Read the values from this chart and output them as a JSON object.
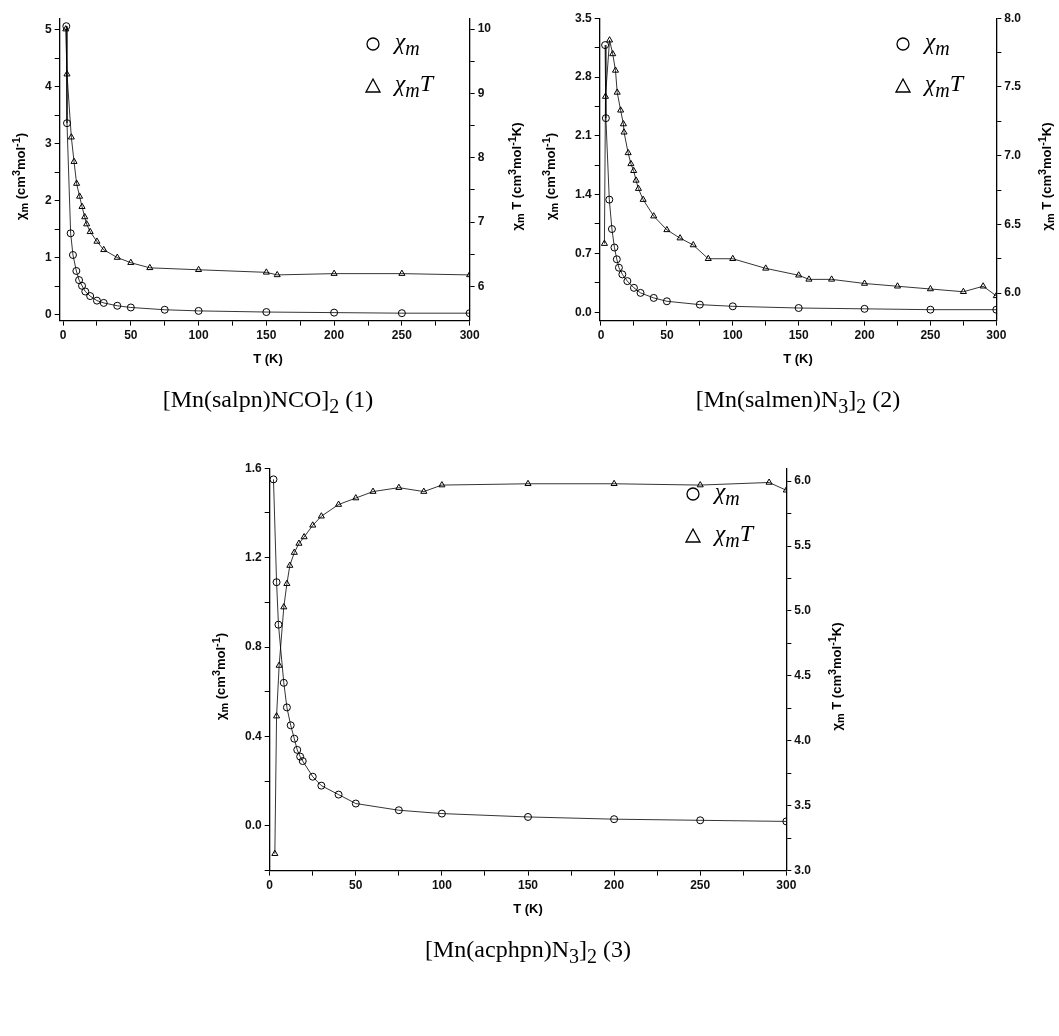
{
  "chart_data": [
    {
      "type": "line",
      "title": "[Mn(salpn)NCO]$_{2}$ (1)",
      "xlabel": "T (K)",
      "ylabel": "χ$_{m}$ (cm$^{3}$mol$^{-1}$)",
      "y2label": "χ$_{m}$ T (cm$^{3}$mol$^{-1}$K)",
      "legend": "top right",
      "grid": false,
      "xlim": [
        -2.5,
        300
      ],
      "xticks": [
        0,
        {
          "value": 25,
          "label": null
        },
        50,
        {
          "value": 75,
          "label": null
        },
        100,
        {
          "value": 125,
          "label": null
        },
        150,
        {
          "value": 175,
          "label": null
        },
        200,
        {
          "value": 225,
          "label": null
        },
        250,
        {
          "value": 275,
          "label": null
        },
        300
      ],
      "ylim": [
        -0.1,
        5.2
      ],
      "yticks": [
        0,
        {
          "value": 0.5,
          "label": null
        },
        1,
        {
          "value": 1.5,
          "label": null
        },
        2,
        {
          "value": 2.5,
          "label": null
        },
        3,
        {
          "value": 3.5,
          "label": null
        },
        4,
        {
          "value": 4.5,
          "label": null
        },
        5
      ],
      "y2lim": [
        5.47,
        10.17
      ],
      "y2ticks": [
        6,
        {
          "value": 6.5,
          "label": null
        },
        7,
        {
          "value": 7.5,
          "label": null
        },
        8,
        {
          "value": 8.5,
          "label": null
        },
        9,
        {
          "value": 9.5,
          "label": null
        },
        10
      ],
      "series": [
        {
          "name": "χ$_{m}$",
          "color": "#000000",
          "marker": "circle",
          "axis": "y",
          "x": [
            2.4,
            2.9,
            5.6,
            7.3,
            9.8,
            11.8,
            14,
            16.4,
            20,
            25,
            30,
            40,
            50,
            75,
            100,
            150,
            200,
            250,
            300
          ],
          "values": [
            5.06,
            3.36,
            1.43,
            1.05,
            0.77,
            0.61,
            0.51,
            0.41,
            0.33,
            0.25,
            0.21,
            0.16,
            0.13,
            0.09,
            0.07,
            0.05,
            0.04,
            0.03,
            0.03
          ]
        },
        {
          "name": "χ$_{m}$T",
          "color": "#000000",
          "marker": "triangle",
          "axis": "y2",
          "x": [
            2,
            2.9,
            6.1,
            8.1,
            10,
            12.2,
            14,
            16,
            17.4,
            20,
            25,
            30,
            40,
            50,
            64,
            100,
            150,
            158,
            200,
            250,
            300
          ],
          "values": [
            10.0,
            9.3,
            8.32,
            7.94,
            7.6,
            7.4,
            7.24,
            7.08,
            6.97,
            6.85,
            6.7,
            6.57,
            6.45,
            6.37,
            6.29,
            6.26,
            6.22,
            6.18,
            6.2,
            6.2,
            6.18
          ]
        }
      ]
    },
    {
      "type": "line",
      "title": "[Mn(salmen)N$_{3}$]$_{2}$ (2)",
      "xlabel": "T (K)",
      "ylabel": "χ$_{m}$ (cm$^{3}$mol$^{-1}$)",
      "y2label": "χ$_{m}$ T (cm$^{3}$mol$^{-1}$K)",
      "legend": "top right",
      "grid": false,
      "xlim": [
        -1,
        300
      ],
      "xticks": [
        0,
        {
          "value": 25,
          "label": null
        },
        50,
        {
          "value": 75,
          "label": null
        },
        100,
        {
          "value": 125,
          "label": null
        },
        150,
        {
          "value": 175,
          "label": null
        },
        200,
        {
          "value": 225,
          "label": null
        },
        250,
        {
          "value": 275,
          "label": null
        },
        300
      ],
      "ylim": [
        -0.1,
        3.5
      ],
      "yticks": [
        {
          "value": 0,
          "label": "0.0"
        },
        {
          "value": 0.35,
          "label": null
        },
        0.7,
        {
          "value": 1.05,
          "label": null
        },
        1.4,
        {
          "value": 1.75,
          "label": null
        },
        2.1,
        {
          "value": 2.45,
          "label": null
        },
        2.8,
        {
          "value": 3.15,
          "label": null
        },
        3.5
      ],
      "y2lim": [
        5.8,
        8.0
      ],
      "y2ticks": [
        {
          "value": 6,
          "label": "6.0"
        },
        {
          "value": 6.25,
          "label": null
        },
        6.5,
        {
          "value": 6.75,
          "label": null
        },
        {
          "value": 7,
          "label": "7.0"
        },
        {
          "value": 7.25,
          "label": null
        },
        7.5,
        {
          "value": 7.75,
          "label": null
        },
        {
          "value": 8,
          "label": "8.0"
        }
      ],
      "series": [
        {
          "name": "χ$_{m}$",
          "color": "#000000",
          "marker": "circle",
          "axis": "y",
          "x": [
            3.1,
            3.7,
            6.3,
            8.3,
            10.2,
            12,
            13.6,
            16.2,
            20,
            25,
            30,
            40,
            50,
            75,
            100,
            150,
            200,
            250,
            300
          ],
          "values": [
            3.18,
            2.31,
            1.34,
            0.99,
            0.77,
            0.63,
            0.53,
            0.45,
            0.37,
            0.29,
            0.23,
            0.17,
            0.13,
            0.09,
            0.07,
            0.05,
            0.04,
            0.03,
            0.03
          ]
        },
        {
          "name": "χ$_{m}$T",
          "color": "#000000",
          "marker": "triangle",
          "axis": "y2",
          "x": [
            2.6,
            3.4,
            6.5,
            8.9,
            11,
            12.3,
            14.9,
            17,
            17.5,
            20.6,
            22.7,
            24.8,
            26.6,
            28.4,
            32,
            40,
            50,
            60,
            70,
            81.4,
            100,
            125,
            150,
            157.8,
            175,
            200,
            225,
            250,
            275,
            290,
            300
          ],
          "values": [
            6.36,
            7.43,
            7.84,
            7.74,
            7.62,
            7.46,
            7.33,
            7.23,
            7.17,
            7.02,
            6.94,
            6.89,
            6.82,
            6.76,
            6.68,
            6.56,
            6.46,
            6.4,
            6.35,
            6.25,
            6.25,
            6.18,
            6.13,
            6.1,
            6.1,
            6.07,
            6.05,
            6.03,
            6.01,
            6.05,
            5.98
          ]
        }
      ]
    },
    {
      "type": "line",
      "title": "[Mn(acphpn)N$_{3}$]$_{2}$ (3)",
      "xlabel": "T (K)",
      "ylabel": "χ$_{m}$ (cm$^{3}$mol$^{-1}$)",
      "y2label": "χ$_{m}$ T (cm$^{3}$mol$^{-1}$K)",
      "legend": "top right",
      "grid": false,
      "xlim": [
        0,
        300
      ],
      "xticks": [
        0,
        {
          "value": 25,
          "label": null
        },
        50,
        {
          "value": 75,
          "label": null
        },
        100,
        {
          "value": 125,
          "label": null
        },
        150,
        {
          "value": 175,
          "label": null
        },
        200,
        {
          "value": 225,
          "label": null
        },
        250,
        {
          "value": 275,
          "label": null
        },
        300
      ],
      "ylim": [
        -0.2,
        1.6
      ],
      "yticks": [
        {
          "value": -0.2,
          "label": null
        },
        {
          "value": 0,
          "label": "0.0"
        },
        {
          "value": 0.2,
          "label": null
        },
        0.4,
        {
          "value": 0.6,
          "label": null
        },
        0.8,
        {
          "value": 1.0,
          "label": null
        },
        1.2,
        {
          "value": 1.4,
          "label": null
        },
        1.6
      ],
      "y2lim": [
        3.0,
        6.1
      ],
      "y2ticks": [
        {
          "value": 3,
          "label": "3.0"
        },
        {
          "value": 3.25,
          "label": null
        },
        3.5,
        {
          "value": 3.75,
          "label": null
        },
        {
          "value": 4,
          "label": "4.0"
        },
        {
          "value": 4.25,
          "label": null
        },
        4.5,
        {
          "value": 4.75,
          "label": null
        },
        {
          "value": 5,
          "label": "5.0"
        },
        {
          "value": 5.25,
          "label": null
        },
        5.5,
        {
          "value": 5.75,
          "label": null
        },
        {
          "value": 6,
          "label": "6.0"
        }
      ],
      "series": [
        {
          "name": "χ$_{m}$",
          "color": "#000000",
          "marker": "circle",
          "axis": "y",
          "x": [
            2.2,
            4,
            5.1,
            8.2,
            10,
            12.2,
            14.3,
            16,
            17.7,
            19.2,
            25,
            30,
            40,
            50,
            75,
            100,
            150,
            200,
            250,
            300
          ],
          "values": [
            1.55,
            1.09,
            0.9,
            0.64,
            0.53,
            0.45,
            0.39,
            0.34,
            0.31,
            0.29,
            0.22,
            0.18,
            0.14,
            0.1,
            0.07,
            0.055,
            0.04,
            0.03,
            0.025,
            0.02
          ]
        },
        {
          "name": "χ$_{m}$T",
          "color": "#000000",
          "marker": "triangle",
          "axis": "y2",
          "x": [
            3,
            4,
            5.5,
            8.2,
            10,
            11.7,
            14.3,
            17,
            20,
            25,
            30,
            40,
            50,
            60,
            75,
            89.5,
            100,
            150,
            200,
            250,
            290,
            300
          ],
          "values": [
            3.13,
            4.19,
            4.58,
            5.03,
            5.21,
            5.35,
            5.45,
            5.52,
            5.57,
            5.66,
            5.73,
            5.82,
            5.87,
            5.92,
            5.95,
            5.92,
            5.97,
            5.98,
            5.98,
            5.97,
            5.99,
            5.93
          ]
        }
      ]
    }
  ]
}
